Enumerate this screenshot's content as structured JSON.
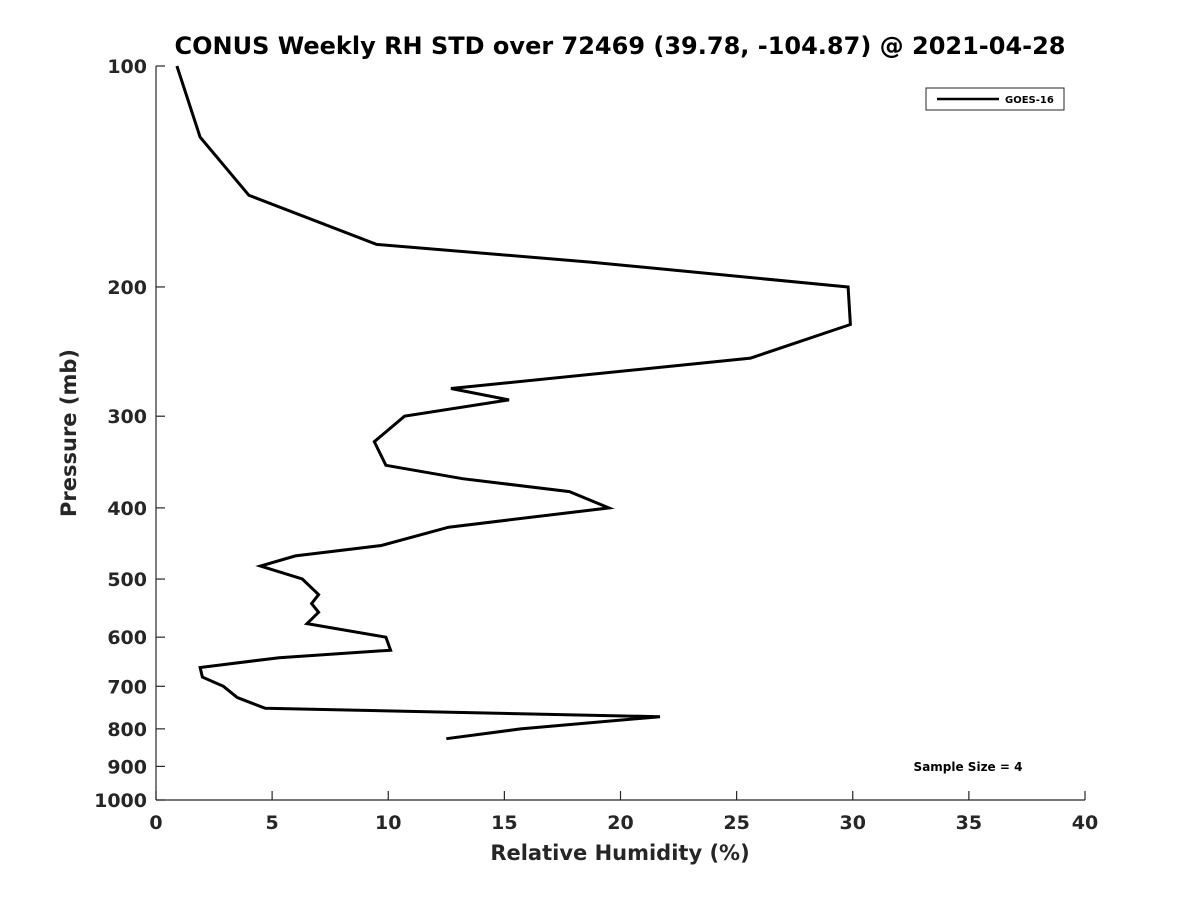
{
  "chart_data": {
    "type": "line",
    "title": "CONUS Weekly RH STD over 72469 (39.78, -104.87) @ 2021-04-28",
    "xlabel": "Relative Humidity (%)",
    "ylabel": "Pressure (mb)",
    "xlim": [
      0,
      40
    ],
    "ylim": [
      100,
      1000
    ],
    "y_scale": "log",
    "y_reversed": true,
    "x_ticks": [
      0,
      5,
      10,
      15,
      20,
      25,
      30,
      35,
      40
    ],
    "y_ticks": [
      100,
      200,
      300,
      400,
      500,
      600,
      700,
      800,
      900,
      1000
    ],
    "grid": false,
    "legend_position": "top-right",
    "annotation": "Sample Size = 4",
    "series": [
      {
        "name": "GOES-16",
        "color": "#000000",
        "points": [
          {
            "x": 0.9,
            "y": 100
          },
          {
            "x": 1.9,
            "y": 125
          },
          {
            "x": 4.0,
            "y": 150
          },
          {
            "x": 9.5,
            "y": 175
          },
          {
            "x": 18.7,
            "y": 185
          },
          {
            "x": 29.8,
            "y": 200
          },
          {
            "x": 29.9,
            "y": 225
          },
          {
            "x": 25.6,
            "y": 250
          },
          {
            "x": 12.7,
            "y": 275
          },
          {
            "x": 15.2,
            "y": 285
          },
          {
            "x": 10.7,
            "y": 300
          },
          {
            "x": 9.4,
            "y": 325
          },
          {
            "x": 9.9,
            "y": 350
          },
          {
            "x": 13.2,
            "y": 365
          },
          {
            "x": 17.8,
            "y": 380
          },
          {
            "x": 19.5,
            "y": 400
          },
          {
            "x": 12.6,
            "y": 425
          },
          {
            "x": 9.7,
            "y": 450
          },
          {
            "x": 6.0,
            "y": 465
          },
          {
            "x": 4.5,
            "y": 480
          },
          {
            "x": 6.3,
            "y": 500
          },
          {
            "x": 7.0,
            "y": 525
          },
          {
            "x": 6.7,
            "y": 540
          },
          {
            "x": 7.0,
            "y": 555
          },
          {
            "x": 6.5,
            "y": 575
          },
          {
            "x": 9.9,
            "y": 600
          },
          {
            "x": 10.1,
            "y": 625
          },
          {
            "x": 5.3,
            "y": 640
          },
          {
            "x": 1.9,
            "y": 660
          },
          {
            "x": 2.0,
            "y": 680
          },
          {
            "x": 2.9,
            "y": 700
          },
          {
            "x": 3.5,
            "y": 725
          },
          {
            "x": 4.7,
            "y": 750
          },
          {
            "x": 21.7,
            "y": 770
          },
          {
            "x": 15.7,
            "y": 800
          },
          {
            "x": 12.5,
            "y": 825
          }
        ]
      }
    ]
  }
}
